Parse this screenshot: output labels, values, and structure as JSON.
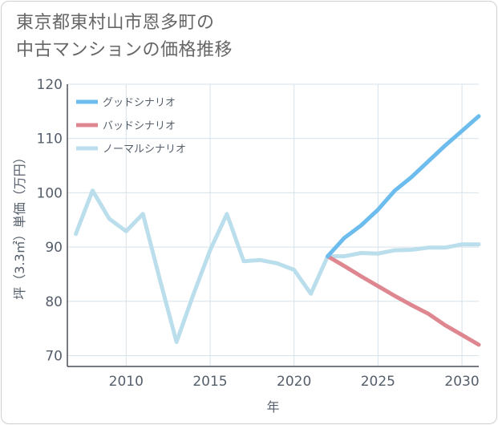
{
  "chart_data": {
    "type": "line",
    "title_lines": [
      "東京都東村山市恩多町の",
      "中古マンションの価格推移"
    ],
    "xlabel": "年",
    "ylabel": "坪（3.3㎡）単価（万円）",
    "xlim": [
      2006.5,
      2031
    ],
    "ylim": [
      68,
      120
    ],
    "x_ticks": [
      2010,
      2015,
      2020,
      2025,
      2030
    ],
    "y_ticks": [
      70,
      80,
      90,
      100,
      110,
      120
    ],
    "grid": true,
    "legend_position": "top-left",
    "series": [
      {
        "name": "グッドシナリオ",
        "color": "#6cbcee",
        "x": [
          2022,
          2023,
          2024,
          2025,
          2026,
          2027,
          2028,
          2029,
          2030,
          2031
        ],
        "values": [
          88.3,
          91.7,
          94,
          96.9,
          100.4,
          102.9,
          105.8,
          108.7,
          111.4,
          114.1
        ]
      },
      {
        "name": "バッドシナリオ",
        "color": "#df8790",
        "x": [
          2022,
          2023,
          2024,
          2025,
          2026,
          2027,
          2028,
          2029,
          2030,
          2031
        ],
        "values": [
          88.3,
          86.5,
          84.6,
          82.8,
          81,
          79.3,
          77.7,
          75.6,
          73.8,
          72
        ]
      },
      {
        "name": "ノーマルシナリオ",
        "color": "#bbdeec",
        "x": [
          2007,
          2008,
          2009,
          2010,
          2011,
          2012,
          2013,
          2014,
          2015,
          2016,
          2017,
          2018,
          2019,
          2020,
          2021,
          2022,
          2023,
          2024,
          2025,
          2026,
          2027,
          2028,
          2029,
          2030,
          2031
        ],
        "values": [
          92.4,
          100.4,
          95.2,
          92.9,
          96.1,
          84.1,
          72.5,
          81.2,
          89.4,
          96.1,
          87.4,
          87.6,
          87,
          85.8,
          81.4,
          88.3,
          88.3,
          88.9,
          88.8,
          89.4,
          89.5,
          89.9,
          89.9,
          90.5,
          90.5
        ]
      }
    ]
  }
}
